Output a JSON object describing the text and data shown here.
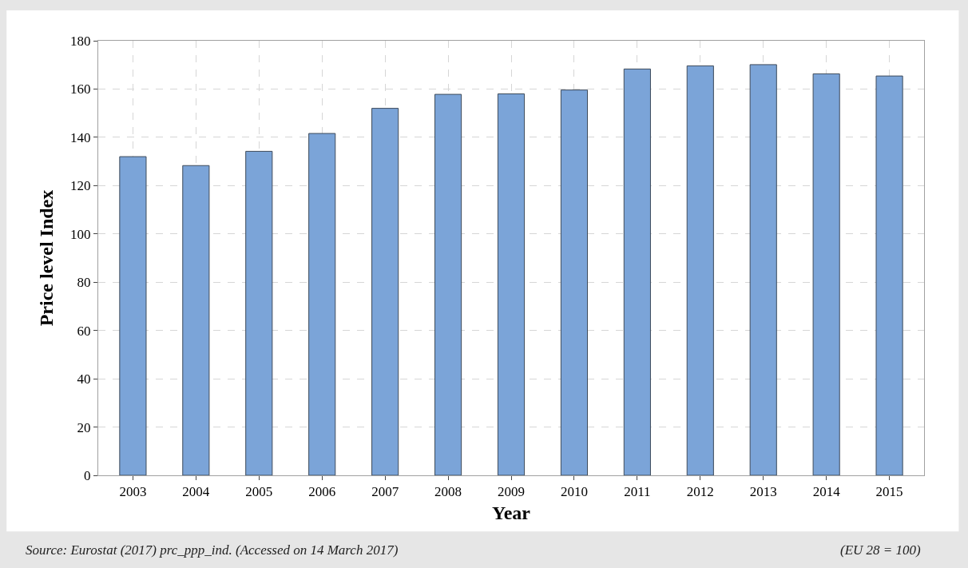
{
  "chart_data": {
    "type": "bar",
    "xlabel": "Year",
    "ylabel": "Price level Index",
    "categories": [
      "2003",
      "2004",
      "2005",
      "2006",
      "2007",
      "2008",
      "2009",
      "2010",
      "2011",
      "2012",
      "2013",
      "2014",
      "2015"
    ],
    "values": [
      132,
      128.3,
      134.2,
      141.6,
      152,
      157.8,
      158,
      159.6,
      168.3,
      169.6,
      170.1,
      166.3,
      165.4
    ],
    "color": "#7ba4d8",
    "ylim": [
      0,
      180
    ],
    "yticks": [
      0,
      20,
      40,
      60,
      80,
      100,
      120,
      140,
      160,
      180
    ],
    "grid": true,
    "annotations": [
      "Source: Eurostat (2017) prc_ppp_ind. (Accessed on 14 March 2017)",
      "(EU 28 = 100)"
    ]
  }
}
